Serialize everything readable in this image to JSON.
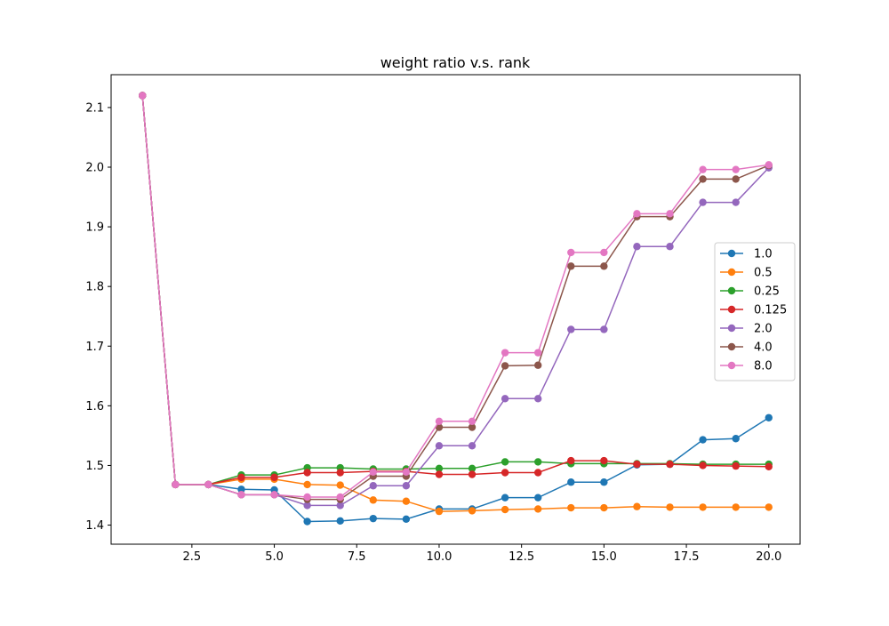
{
  "chart_data": {
    "type": "line",
    "title": "weight ratio v.s. rank",
    "xlabel": "",
    "ylabel": "",
    "xlim": [
      0.05,
      20.95
    ],
    "ylim": [
      1.368,
      2.155
    ],
    "xticks": [
      2.5,
      5.0,
      7.5,
      10.0,
      12.5,
      15.0,
      17.5,
      20.0
    ],
    "xtick_labels": [
      "2.5",
      "5.0",
      "7.5",
      "10.0",
      "12.5",
      "15.0",
      "17.5",
      "20.0"
    ],
    "yticks": [
      1.4,
      1.5,
      1.6,
      1.7,
      1.8,
      1.9,
      2.0,
      2.1
    ],
    "ytick_labels": [
      "1.4",
      "1.5",
      "1.6",
      "1.7",
      "1.8",
      "1.9",
      "2.0",
      "2.1"
    ],
    "grid": false,
    "legend_position": "center-right",
    "x": [
      1,
      2,
      3,
      4,
      5,
      6,
      7,
      8,
      9,
      10,
      11,
      12,
      13,
      14,
      15,
      16,
      17,
      18,
      19,
      20
    ],
    "series": [
      {
        "name": "1.0",
        "color": "#1f77b4",
        "values": [
          2.12,
          1.468,
          1.468,
          1.46,
          1.459,
          1.406,
          1.407,
          1.411,
          1.41,
          1.427,
          1.427,
          1.446,
          1.446,
          1.472,
          1.472,
          1.501,
          1.502,
          1.543,
          1.545,
          1.58
        ]
      },
      {
        "name": "0.5",
        "color": "#ff7f0e",
        "values": [
          2.12,
          1.468,
          1.468,
          1.477,
          1.477,
          1.468,
          1.467,
          1.442,
          1.44,
          1.423,
          1.424,
          1.426,
          1.427,
          1.429,
          1.429,
          1.431,
          1.43,
          1.43,
          1.43,
          1.43
        ]
      },
      {
        "name": "0.25",
        "color": "#2ca02c",
        "values": [
          2.12,
          1.468,
          1.468,
          1.484,
          1.484,
          1.496,
          1.496,
          1.494,
          1.494,
          1.495,
          1.495,
          1.506,
          1.506,
          1.503,
          1.503,
          1.503,
          1.503,
          1.502,
          1.502,
          1.502
        ]
      },
      {
        "name": "0.125",
        "color": "#d62728",
        "values": [
          2.12,
          1.468,
          1.468,
          1.48,
          1.48,
          1.488,
          1.488,
          1.49,
          1.49,
          1.485,
          1.485,
          1.488,
          1.488,
          1.508,
          1.508,
          1.502,
          1.502,
          1.5,
          1.499,
          1.498
        ]
      },
      {
        "name": "2.0",
        "color": "#9467bd",
        "values": [
          2.12,
          1.468,
          1.468,
          1.451,
          1.451,
          1.433,
          1.433,
          1.466,
          1.466,
          1.533,
          1.533,
          1.612,
          1.612,
          1.728,
          1.728,
          1.867,
          1.867,
          1.941,
          1.941,
          1.999
        ]
      },
      {
        "name": "4.0",
        "color": "#8c564b",
        "values": [
          2.12,
          1.468,
          1.468,
          1.451,
          1.451,
          1.443,
          1.443,
          1.482,
          1.482,
          1.564,
          1.564,
          1.667,
          1.668,
          1.834,
          1.834,
          1.917,
          1.917,
          1.98,
          1.98,
          2.003
        ]
      },
      {
        "name": "8.0",
        "color": "#e377c2",
        "values": [
          2.12,
          1.468,
          1.468,
          1.451,
          1.451,
          1.447,
          1.447,
          1.489,
          1.489,
          1.574,
          1.574,
          1.689,
          1.689,
          1.857,
          1.857,
          1.922,
          1.922,
          1.996,
          1.996,
          2.004
        ]
      }
    ]
  }
}
